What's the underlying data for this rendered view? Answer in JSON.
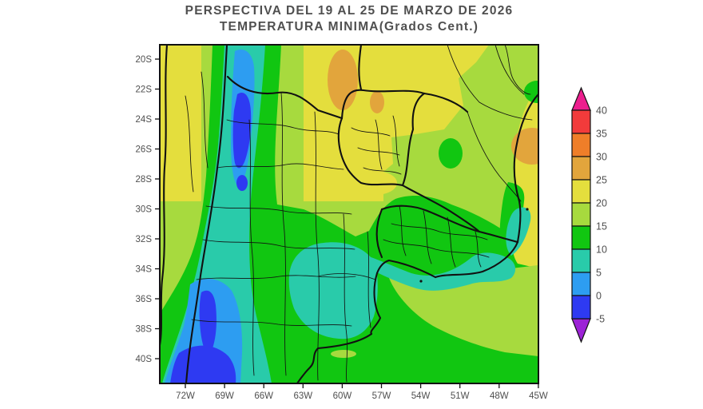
{
  "title": {
    "line1": "PERSPECTIVA DEL 19 AL 25 DE MARZO DE 2026",
    "line2": "TEMPERATURA MINIMA(Grados Cent.)"
  },
  "axes": {
    "y_labels": [
      "20S",
      "22S",
      "24S",
      "26S",
      "28S",
      "30S",
      "32S",
      "34S",
      "36S",
      "38S",
      "40S"
    ],
    "x_labels": [
      "72W",
      "69W",
      "66W",
      "63W",
      "60W",
      "57W",
      "54W",
      "51W",
      "48W",
      "45W"
    ]
  },
  "colorbar": {
    "tick_values": [
      "40",
      "35",
      "30",
      "25",
      "20",
      "15",
      "10",
      "5",
      "0",
      "-5"
    ],
    "segment_colors": [
      "red",
      "orange",
      "amber",
      "yellow",
      "yellowGreen",
      "green",
      "teal",
      "lightBlue",
      "blue"
    ],
    "arrow_top_color": "magenta",
    "arrow_bottom_color": "purple"
  },
  "palette": {
    "magenta": "#ec1e8e",
    "red": "#f23b3b",
    "orange": "#ef7e29",
    "amber": "#e2a53c",
    "yellow": "#e4de3d",
    "yellowGreen": "#a7da3e",
    "green": "#11c611",
    "teal": "#29cbaa",
    "lightBlue": "#2d9df1",
    "blue": "#2e3af2",
    "purple": "#9c22d6",
    "ink": "#111111",
    "label": "#4f4f4f"
  },
  "map_meta": {
    "temperature_unit": "Grados Cent.",
    "value_range": [
      "-5",
      "40"
    ]
  }
}
